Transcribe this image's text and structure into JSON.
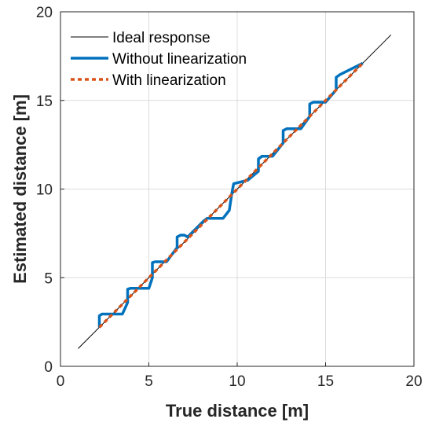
{
  "chart_data": {
    "type": "line",
    "title": "",
    "xlabel": "True distance [m]",
    "ylabel": "Estimated distance [m]",
    "xlim": [
      0,
      20
    ],
    "ylim": [
      0,
      20
    ],
    "xticks": [
      0,
      5,
      10,
      15,
      20
    ],
    "yticks": [
      0,
      5,
      10,
      15,
      20
    ],
    "grid": true,
    "legend_position": "top-left",
    "series": [
      {
        "name": "Ideal response",
        "color": "#000000",
        "style": "solid-thin",
        "x": [
          1.0,
          18.7
        ],
        "y": [
          1.0,
          18.7
        ]
      },
      {
        "name": "Without linearization",
        "color": "#0072BD",
        "style": "solid-thick",
        "x": [
          2.2,
          2.2,
          2.35,
          3.5,
          3.8,
          3.8,
          3.95,
          5.0,
          5.2,
          5.2,
          5.35,
          6.0,
          6.6,
          6.6,
          6.8,
          7.0,
          7.2,
          8.1,
          8.3,
          9.2,
          9.55,
          9.7,
          9.8,
          10.6,
          11.2,
          11.2,
          11.4,
          12.0,
          12.6,
          12.6,
          12.8,
          13.6,
          14.1,
          14.1,
          14.3,
          15.0,
          15.6,
          15.6,
          15.8,
          17.1
        ],
        "y": [
          2.2,
          2.85,
          2.95,
          2.95,
          3.6,
          4.35,
          4.4,
          4.4,
          5.0,
          5.85,
          5.9,
          5.9,
          6.7,
          7.3,
          7.4,
          7.4,
          7.3,
          8.2,
          8.35,
          8.35,
          8.8,
          9.8,
          10.3,
          10.5,
          11.0,
          11.7,
          11.85,
          11.85,
          12.6,
          13.3,
          13.4,
          13.4,
          14.1,
          14.8,
          14.9,
          14.9,
          15.6,
          16.3,
          16.45,
          17.1
        ]
      },
      {
        "name": "With linearization",
        "color": "#D95319",
        "style": "dotted",
        "x": [
          2.2,
          17.1
        ],
        "y": [
          2.2,
          17.1
        ]
      }
    ]
  }
}
